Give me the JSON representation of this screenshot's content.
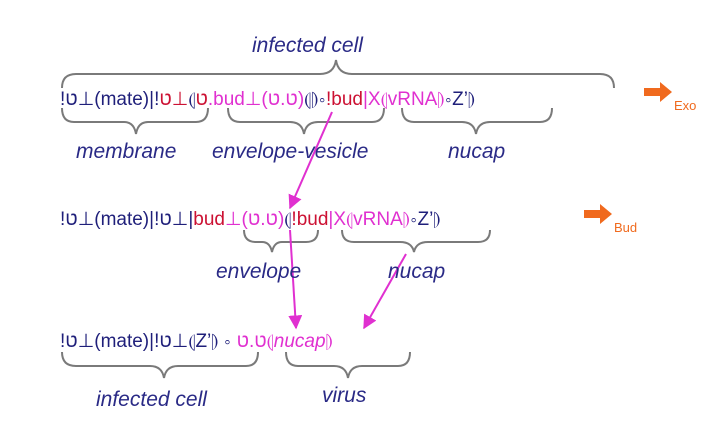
{
  "colors": {
    "navy": "#1f1f7a",
    "red": "#cc1133",
    "magenta": "#e030d0",
    "orange": "#f06a1e",
    "brace": "#7a7a7a"
  },
  "row1": {
    "top_label": "infected cell",
    "p1": "!ט⊥(mate)|!",
    "p2": "ט⊥",
    "p3": "⦇",
    "p4": "ט",
    "p5": ".bud⊥(ט.ט)",
    "p6": "⦇⦈∘",
    "p7": "!bud",
    "p8": "|X⦇vRNA⦈",
    "p9": "∘Z’⦈",
    "labels": [
      "membrane",
      "envelope-vesicle",
      "nucap"
    ],
    "arrow_label": "Exo"
  },
  "row2": {
    "p1": "!ט⊥(mate)|!ט⊥|",
    "p2": "bud",
    "p3": "⊥(ט.ט)",
    "p4": "⦇",
    "p5": "!bud",
    "p6": "|X⦇vRNA⦈",
    "p7": "∘Z’⦈",
    "labels": [
      "envelope",
      "nucap"
    ],
    "arrow_label": "Bud"
  },
  "row3": {
    "p1": "!ט⊥(mate)|!ט⊥⦇Z’⦈ ∘ ",
    "p2": "ט.ט⦇",
    "p3": "nucap",
    "p4": "⦈",
    "labels": [
      "infected cell",
      "virus"
    ]
  }
}
